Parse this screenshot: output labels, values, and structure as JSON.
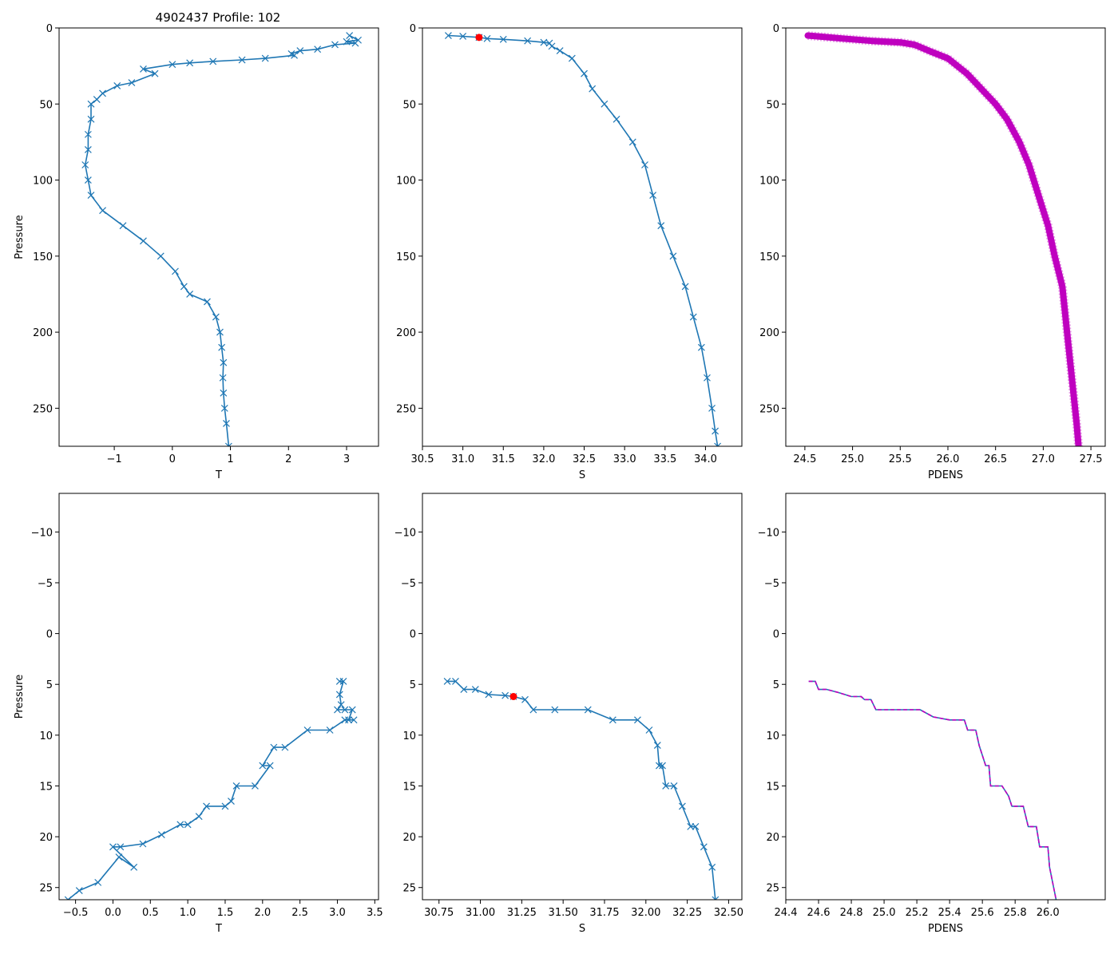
{
  "figure_title": "4902437 Profile: 102",
  "colors": {
    "series": "#1f77b4",
    "pdens": "#bf00bf",
    "marker": "#ff0000",
    "axis": "#000000"
  },
  "chart_data": [
    {
      "id": "t-full",
      "type": "line",
      "xlabel": "T",
      "ylabel": "Pressure",
      "xlim": [
        -1.95,
        3.55
      ],
      "ylim": [
        275,
        0
      ],
      "xticks": [
        -1,
        0,
        1,
        2,
        3
      ],
      "xticklabels": [
        "−1",
        "0",
        "1",
        "2",
        "3"
      ],
      "yticks": [
        0,
        50,
        100,
        150,
        200,
        250
      ],
      "yticklabels": [
        "0",
        "50",
        "100",
        "150",
        "200",
        "250"
      ],
      "series": [
        {
          "name": "T",
          "style": "line-x",
          "color": "#1f77b4",
          "x": [
            3.05,
            3.2,
            3.0,
            3.15,
            2.8,
            2.5,
            2.2,
            2.05,
            2.1,
            1.6,
            1.2,
            0.7,
            0.3,
            0.0,
            -0.5,
            -0.3,
            -0.7,
            -0.95,
            -1.2,
            -1.3,
            -1.4,
            -1.4,
            -1.45,
            -1.45,
            -1.5,
            -1.45,
            -1.4,
            -1.2,
            -0.85,
            -0.5,
            -0.2,
            0.05,
            0.2,
            0.3,
            0.6,
            0.75,
            0.82,
            0.85,
            0.88,
            0.87,
            0.88,
            0.9,
            0.93,
            0.97
          ],
          "y": [
            5,
            8,
            9,
            10,
            11,
            14,
            15,
            17,
            18,
            20,
            21,
            22,
            23,
            24,
            27,
            30,
            36,
            38,
            43,
            47,
            50,
            60,
            70,
            80,
            90,
            100,
            110,
            120,
            130,
            140,
            150,
            160,
            170,
            175,
            180,
            190,
            200,
            210,
            220,
            230,
            240,
            250,
            260,
            275
          ]
        }
      ]
    },
    {
      "id": "s-full",
      "type": "line",
      "xlabel": "S",
      "ylabel": "",
      "xlim": [
        30.5,
        34.45
      ],
      "ylim": [
        275,
        0
      ],
      "xticks": [
        30.5,
        31.0,
        31.5,
        32.0,
        32.5,
        33.0,
        33.5,
        34.0
      ],
      "xticklabels": [
        "30.5",
        "31.0",
        "31.5",
        "32.0",
        "32.5",
        "33.0",
        "33.5",
        "34.0"
      ],
      "yticks": [
        0,
        50,
        100,
        150,
        200,
        250
      ],
      "yticklabels": [
        "0",
        "50",
        "100",
        "150",
        "200",
        "250"
      ],
      "series": [
        {
          "name": "S",
          "style": "line-x",
          "color": "#1f77b4",
          "x": [
            30.82,
            31.0,
            31.2,
            31.3,
            31.5,
            31.8,
            32.0,
            32.07,
            32.1,
            32.2,
            32.35,
            32.5,
            32.6,
            32.75,
            32.9,
            33.1,
            33.25,
            33.35,
            33.45,
            33.6,
            33.75,
            33.85,
            33.95,
            34.02,
            34.08,
            34.12,
            34.15
          ],
          "y": [
            5,
            5.5,
            6.2,
            7,
            7.5,
            8.5,
            9.5,
            10,
            12,
            15,
            20,
            30,
            40,
            50,
            60,
            75,
            90,
            110,
            130,
            150,
            170,
            190,
            210,
            230,
            250,
            265,
            275
          ]
        },
        {
          "name": "marker",
          "style": "dot",
          "color": "#ff0000",
          "x": [
            31.2
          ],
          "y": [
            6.2
          ]
        }
      ]
    },
    {
      "id": "pdens-full",
      "type": "line",
      "xlabel": "PDENS",
      "ylabel": "",
      "xlim": [
        24.3,
        27.65
      ],
      "ylim": [
        275,
        0
      ],
      "xticks": [
        24.5,
        25.0,
        25.5,
        26.0,
        26.5,
        27.0,
        27.5
      ],
      "xticklabels": [
        "24.5",
        "25.0",
        "25.5",
        "26.0",
        "26.5",
        "27.0",
        "27.5"
      ],
      "yticks": [
        0,
        50,
        100,
        150,
        200,
        250
      ],
      "yticklabels": [
        "0",
        "50",
        "100",
        "150",
        "200",
        "250"
      ],
      "series": [
        {
          "name": "PDENS",
          "style": "thick",
          "color": "#bf00bf",
          "x": [
            24.53,
            24.9,
            25.2,
            25.5,
            25.65,
            25.8,
            26.0,
            26.2,
            26.35,
            26.5,
            26.62,
            26.75,
            26.85,
            26.95,
            27.05,
            27.12,
            27.2,
            27.25,
            27.3,
            27.35,
            27.37
          ],
          "y": [
            5,
            7,
            8.5,
            9.5,
            11,
            15,
            20,
            30,
            40,
            50,
            60,
            75,
            90,
            110,
            130,
            150,
            170,
            200,
            230,
            260,
            275
          ]
        }
      ]
    },
    {
      "id": "t-zoom",
      "type": "line",
      "xlabel": "T",
      "ylabel": "Pressure",
      "xlim": [
        -0.72,
        3.55
      ],
      "ylim": [
        26.2,
        -13.8
      ],
      "xticks": [
        -0.5,
        0.0,
        0.5,
        1.0,
        1.5,
        2.0,
        2.5,
        3.0,
        3.5
      ],
      "xticklabels": [
        "−0.5",
        "0.0",
        "0.5",
        "1.0",
        "1.5",
        "2.0",
        "2.5",
        "3.0",
        "3.5"
      ],
      "yticks": [
        -10,
        -5,
        0,
        5,
        10,
        15,
        20,
        25
      ],
      "yticklabels": [
        "−10",
        "−5",
        "0",
        "5",
        "10",
        "15",
        "20",
        "25"
      ],
      "series": [
        {
          "name": "T",
          "style": "line-x",
          "color": "#1f77b4",
          "x": [
            3.03,
            3.08,
            3.03,
            3.05,
            3.0,
            3.1,
            3.2,
            3.15,
            3.22,
            3.1,
            2.9,
            2.6,
            2.3,
            2.15,
            2.0,
            2.1,
            1.9,
            1.65,
            1.58,
            1.5,
            1.25,
            1.15,
            1.0,
            0.9,
            0.65,
            0.4,
            0.1,
            0.0,
            0.28,
            0.08,
            -0.2,
            -0.45,
            -0.6
          ],
          "y": [
            4.7,
            4.7,
            6.0,
            7.0,
            7.5,
            7.5,
            7.5,
            8.5,
            8.5,
            8.5,
            9.5,
            9.5,
            11.2,
            11.2,
            13.0,
            13.0,
            15.0,
            15.0,
            16.5,
            17.0,
            17.0,
            18.0,
            18.8,
            18.8,
            19.8,
            20.7,
            21.0,
            21.0,
            23.0,
            22.0,
            24.5,
            25.3,
            26.2
          ]
        }
      ]
    },
    {
      "id": "s-zoom",
      "type": "line",
      "xlabel": "S",
      "ylabel": "",
      "xlim": [
        30.65,
        32.58
      ],
      "ylim": [
        26.2,
        -13.8
      ],
      "xticks": [
        30.75,
        31.0,
        31.25,
        31.5,
        31.75,
        32.0,
        32.25,
        32.5
      ],
      "xticklabels": [
        "30.75",
        "31.00",
        "31.25",
        "31.50",
        "31.75",
        "32.00",
        "32.25",
        "32.50"
      ],
      "yticks": [
        -10,
        -5,
        0,
        5,
        10,
        15,
        20,
        25
      ],
      "yticklabels": [
        "−10",
        "−5",
        "0",
        "5",
        "10",
        "15",
        "20",
        "25"
      ],
      "series": [
        {
          "name": "S",
          "style": "line-x",
          "color": "#1f77b4",
          "x": [
            30.8,
            30.85,
            30.9,
            30.97,
            31.05,
            31.15,
            31.2,
            31.27,
            31.32,
            31.45,
            31.65,
            31.8,
            31.95,
            32.02,
            32.07,
            32.08,
            32.1,
            32.12,
            32.17,
            32.22,
            32.27,
            32.3,
            32.35,
            32.4,
            32.42
          ],
          "y": [
            4.7,
            4.7,
            5.5,
            5.5,
            6.0,
            6.1,
            6.2,
            6.5,
            7.5,
            7.5,
            7.5,
            8.5,
            8.5,
            9.5,
            11.0,
            13.0,
            13.0,
            15.0,
            15.0,
            17.0,
            19.0,
            19.0,
            21.0,
            23.0,
            26.2
          ]
        },
        {
          "name": "marker",
          "style": "dot",
          "color": "#ff0000",
          "x": [
            31.2
          ],
          "y": [
            6.2
          ]
        }
      ]
    },
    {
      "id": "pdens-zoom",
      "type": "line",
      "xlabel": "PDENS",
      "ylabel": "",
      "xlim": [
        24.4,
        26.35
      ],
      "ylim": [
        26.2,
        -13.8
      ],
      "xticks": [
        24.4,
        24.6,
        24.8,
        25.0,
        25.2,
        25.4,
        25.6,
        25.8,
        26.0
      ],
      "xticklabels": [
        "24.4",
        "24.6",
        "24.8",
        "25.0",
        "25.2",
        "25.4",
        "25.6",
        "25.8",
        "26.0"
      ],
      "yticks": [
        -10,
        -5,
        0,
        5,
        10,
        15,
        20,
        25
      ],
      "yticklabels": [
        "−10",
        "−5",
        "0",
        "5",
        "10",
        "15",
        "20",
        "25"
      ],
      "series": [
        {
          "name": "PDENS",
          "style": "line",
          "color": "#1f77b4",
          "x": [
            24.54,
            24.58,
            24.6,
            24.65,
            24.72,
            24.8,
            24.86,
            24.88,
            24.92,
            24.95,
            25.0,
            25.1,
            25.22,
            25.3,
            25.4,
            25.49,
            25.51,
            25.56,
            25.58,
            25.62,
            25.64,
            25.65,
            25.72,
            25.76,
            25.78,
            25.85,
            25.88,
            25.93,
            25.95,
            26.0,
            26.01,
            26.05
          ],
          "y": [
            4.7,
            4.7,
            5.5,
            5.5,
            5.8,
            6.2,
            6.2,
            6.5,
            6.5,
            7.5,
            7.5,
            7.5,
            7.5,
            8.2,
            8.5,
            8.5,
            9.5,
            9.5,
            11.0,
            13.0,
            13.0,
            15.0,
            15.0,
            16.0,
            17.0,
            17.0,
            19.0,
            19.0,
            21.0,
            21.0,
            23.0,
            26.2
          ]
        },
        {
          "name": "PDENS-dashed",
          "style": "dashed",
          "color": "#bf00bf",
          "x": [
            24.54,
            24.58,
            24.6,
            24.65,
            24.72,
            24.8,
            24.86,
            24.88,
            24.92,
            24.95,
            25.0,
            25.1,
            25.22,
            25.3,
            25.4,
            25.49,
            25.51,
            25.56,
            25.58,
            25.62,
            25.64,
            25.65,
            25.72,
            25.76,
            25.78,
            25.85,
            25.88,
            25.93,
            25.95,
            26.0,
            26.01,
            26.05
          ],
          "y": [
            4.7,
            4.7,
            5.5,
            5.5,
            5.8,
            6.2,
            6.2,
            6.5,
            6.5,
            7.5,
            7.5,
            7.5,
            7.5,
            8.2,
            8.5,
            8.5,
            9.5,
            9.5,
            11.0,
            13.0,
            13.0,
            15.0,
            15.0,
            16.0,
            17.0,
            17.0,
            19.0,
            19.0,
            21.0,
            21.0,
            23.0,
            26.2
          ]
        }
      ]
    }
  ]
}
